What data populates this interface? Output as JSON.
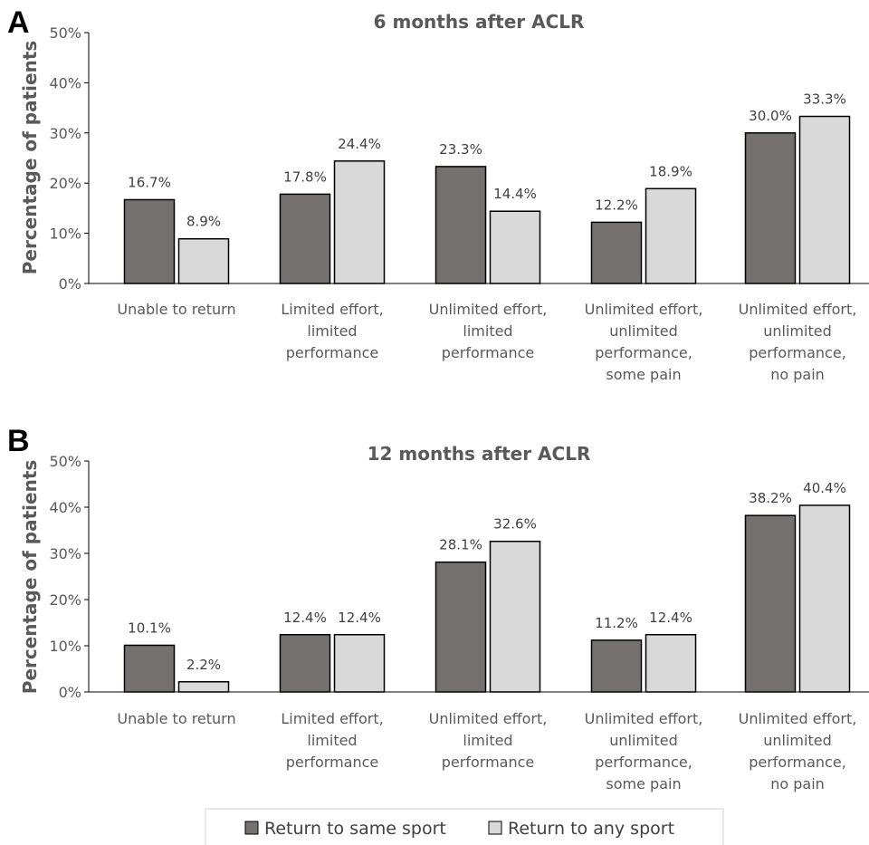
{
  "chart_data": [
    {
      "type": "bar",
      "panel_label": "A",
      "title": "6 months after ACLR",
      "ylabel": "Percentage of patients",
      "xlabel": "",
      "ylim": [
        0,
        50
      ],
      "yticks": [
        "0%",
        "10%",
        "20%",
        "30%",
        "40%",
        "50%"
      ],
      "categories": [
        [
          "Unable to return"
        ],
        [
          "Limited effort,",
          "limited",
          "performance"
        ],
        [
          "Unlimited effort,",
          "limited",
          "performance"
        ],
        [
          "Unlimited effort,",
          "unlimited",
          "performance,",
          "some pain"
        ],
        [
          "Unlimited effort,",
          "unlimited",
          "performance,",
          "no pain"
        ]
      ],
      "series": [
        {
          "name": "Return to same sport",
          "color": "#767171",
          "values": [
            16.7,
            17.8,
            23.3,
            12.2,
            30.0
          ],
          "labels": [
            "16.7%",
            "17.8%",
            "23.3%",
            "12.2%",
            "30.0%"
          ]
        },
        {
          "name": "Return to any sport",
          "color": "#d9d9d9",
          "values": [
            8.9,
            24.4,
            14.4,
            18.9,
            33.3
          ],
          "labels": [
            "8.9%",
            "24.4%",
            "14.4%",
            "18.9%",
            "33.3%"
          ]
        }
      ]
    },
    {
      "type": "bar",
      "panel_label": "B",
      "title": "12 months after ACLR",
      "ylabel": "Percentage of patients",
      "xlabel": "",
      "ylim": [
        0,
        50
      ],
      "yticks": [
        "0%",
        "10%",
        "20%",
        "30%",
        "40%",
        "50%"
      ],
      "categories": [
        [
          "Unable to return"
        ],
        [
          "Limited effort,",
          "limited",
          "performance"
        ],
        [
          "Unlimited effort,",
          "limited",
          "performance"
        ],
        [
          "Unlimited effort,",
          "unlimited",
          "performance,",
          "some pain"
        ],
        [
          "Unlimited effort,",
          "unlimited",
          "performance,",
          "no pain"
        ]
      ],
      "series": [
        {
          "name": "Return to same sport",
          "color": "#767171",
          "values": [
            10.1,
            12.4,
            28.1,
            11.2,
            38.2
          ],
          "labels": [
            "10.1%",
            "12.4%",
            "28.1%",
            "11.2%",
            "38.2%"
          ]
        },
        {
          "name": "Return to any sport",
          "color": "#d9d9d9",
          "values": [
            2.2,
            12.4,
            32.6,
            12.4,
            40.4
          ],
          "labels": [
            "2.2%",
            "12.4%",
            "32.6%",
            "12.4%",
            "40.4%"
          ]
        }
      ]
    }
  ],
  "legend": {
    "items": [
      {
        "label": "Return to same sport",
        "color": "#767171"
      },
      {
        "label": "Return to any sport",
        "color": "#d9d9d9"
      }
    ]
  }
}
